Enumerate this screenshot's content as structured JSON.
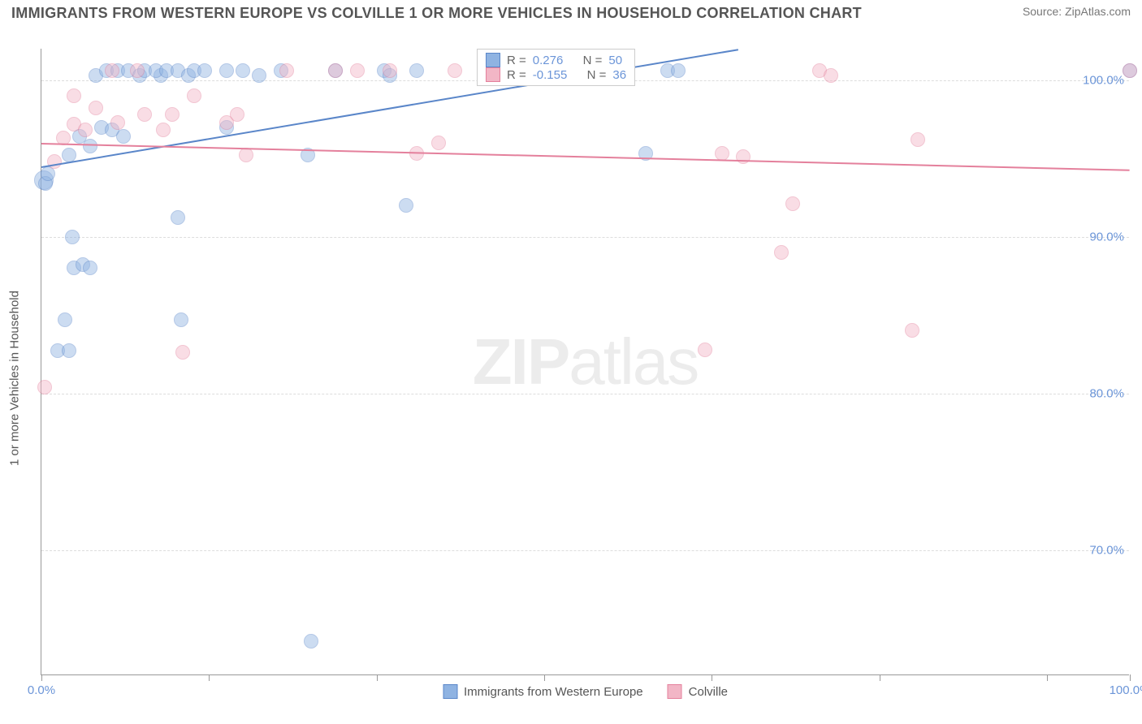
{
  "header": {
    "title": "IMMIGRANTS FROM WESTERN EUROPE VS COLVILLE 1 OR MORE VEHICLES IN HOUSEHOLD CORRELATION CHART",
    "source_label": "Source: ",
    "source_value": "ZipAtlas.com"
  },
  "chart": {
    "type": "scatter",
    "ylabel": "1 or more Vehicles in Household",
    "xlim": [
      0,
      100
    ],
    "ylim": [
      62,
      102
    ],
    "xtick_positions": [
      0,
      15.4,
      30.8,
      46.2,
      61.6,
      77.0,
      92.4,
      100
    ],
    "xtick_labels": {
      "0": "0.0%",
      "100": "100.0%"
    },
    "ytick_positions": [
      70,
      80,
      90,
      100
    ],
    "ytick_labels": {
      "70": "70.0%",
      "80": "80.0%",
      "90": "90.0%",
      "100": "100.0%"
    },
    "grid_color": "#dddddd",
    "background_color": "#ffffff",
    "axis_color": "#999999",
    "tick_label_color": "#6b95d8",
    "marker_radius": 9,
    "marker_opacity": 0.45,
    "series": [
      {
        "name": "Immigrants from Western Europe",
        "color_fill": "#8fb3e2",
        "color_stroke": "#5a86c9",
        "r_label": "R =",
        "r_value": "0.276",
        "n_label": "N =",
        "n_value": "50",
        "trend": {
          "x1": 0,
          "y1": 94.5,
          "x2": 64,
          "y2": 102
        },
        "points": [
          {
            "x": 0.2,
            "y": 93.6,
            "r": 12
          },
          {
            "x": 0.4,
            "y": 93.4
          },
          {
            "x": 0.6,
            "y": 94.0
          },
          {
            "x": 2.8,
            "y": 90.0
          },
          {
            "x": 3.0,
            "y": 88.0
          },
          {
            "x": 1.5,
            "y": 82.7
          },
          {
            "x": 2.5,
            "y": 82.7
          },
          {
            "x": 2.2,
            "y": 84.7
          },
          {
            "x": 3.8,
            "y": 88.2
          },
          {
            "x": 4.5,
            "y": 88.0
          },
          {
            "x": 2.5,
            "y": 95.2
          },
          {
            "x": 3.5,
            "y": 96.4
          },
          {
            "x": 4.5,
            "y": 95.8
          },
          {
            "x": 5.5,
            "y": 97.0
          },
          {
            "x": 6.5,
            "y": 96.8
          },
          {
            "x": 7.5,
            "y": 96.4
          },
          {
            "x": 5.0,
            "y": 100.3
          },
          {
            "x": 6.0,
            "y": 100.6
          },
          {
            "x": 7.0,
            "y": 100.6
          },
          {
            "x": 8.0,
            "y": 100.6
          },
          {
            "x": 9.0,
            "y": 100.3
          },
          {
            "x": 9.5,
            "y": 100.6
          },
          {
            "x": 11.0,
            "y": 100.3
          },
          {
            "x": 10.5,
            "y": 100.6
          },
          {
            "x": 11.5,
            "y": 100.6
          },
          {
            "x": 12.5,
            "y": 100.6
          },
          {
            "x": 13.5,
            "y": 100.3
          },
          {
            "x": 14.0,
            "y": 100.6
          },
          {
            "x": 15.0,
            "y": 100.6
          },
          {
            "x": 17.0,
            "y": 100.6
          },
          {
            "x": 17.0,
            "y": 97.0
          },
          {
            "x": 18.5,
            "y": 100.6
          },
          {
            "x": 20.0,
            "y": 100.3
          },
          {
            "x": 22.0,
            "y": 100.6
          },
          {
            "x": 24.5,
            "y": 95.2
          },
          {
            "x": 27.0,
            "y": 100.6
          },
          {
            "x": 31.5,
            "y": 100.6
          },
          {
            "x": 32.0,
            "y": 100.3
          },
          {
            "x": 33.5,
            "y": 92.0
          },
          {
            "x": 34.5,
            "y": 100.6
          },
          {
            "x": 45.5,
            "y": 100.6
          },
          {
            "x": 48.0,
            "y": 100.3
          },
          {
            "x": 51.5,
            "y": 100.6
          },
          {
            "x": 55.5,
            "y": 95.3
          },
          {
            "x": 57.5,
            "y": 100.6
          },
          {
            "x": 58.5,
            "y": 100.6
          },
          {
            "x": 12.5,
            "y": 91.2
          },
          {
            "x": 12.8,
            "y": 84.7
          },
          {
            "x": 24.8,
            "y": 64.2
          },
          {
            "x": 100.0,
            "y": 100.6
          }
        ]
      },
      {
        "name": "Colville",
        "color_fill": "#f2b6c6",
        "color_stroke": "#e4809c",
        "r_label": "R =",
        "r_value": "-0.155",
        "n_label": "N =",
        "n_value": "36",
        "trend": {
          "x1": 0,
          "y1": 96.0,
          "x2": 100,
          "y2": 94.3
        },
        "points": [
          {
            "x": 0.3,
            "y": 80.4
          },
          {
            "x": 1.2,
            "y": 94.8
          },
          {
            "x": 2.0,
            "y": 96.3
          },
          {
            "x": 3.0,
            "y": 97.2
          },
          {
            "x": 4.0,
            "y": 96.8
          },
          {
            "x": 3.0,
            "y": 99.0
          },
          {
            "x": 5.0,
            "y": 98.2
          },
          {
            "x": 6.5,
            "y": 100.6
          },
          {
            "x": 7.0,
            "y": 97.3
          },
          {
            "x": 8.8,
            "y": 100.6
          },
          {
            "x": 9.5,
            "y": 97.8
          },
          {
            "x": 11.2,
            "y": 96.8
          },
          {
            "x": 12.0,
            "y": 97.8
          },
          {
            "x": 13.0,
            "y": 82.6
          },
          {
            "x": 14.0,
            "y": 99.0
          },
          {
            "x": 17.0,
            "y": 97.3
          },
          {
            "x": 18.0,
            "y": 97.8
          },
          {
            "x": 18.8,
            "y": 95.2
          },
          {
            "x": 22.5,
            "y": 100.6
          },
          {
            "x": 27.0,
            "y": 100.6
          },
          {
            "x": 29.0,
            "y": 100.6
          },
          {
            "x": 32.0,
            "y": 100.6
          },
          {
            "x": 34.5,
            "y": 95.3
          },
          {
            "x": 36.5,
            "y": 96.0
          },
          {
            "x": 38.0,
            "y": 100.6
          },
          {
            "x": 44.0,
            "y": 100.6
          },
          {
            "x": 61.0,
            "y": 82.8
          },
          {
            "x": 62.5,
            "y": 95.3
          },
          {
            "x": 64.5,
            "y": 95.1
          },
          {
            "x": 68.0,
            "y": 89.0
          },
          {
            "x": 69.0,
            "y": 92.1
          },
          {
            "x": 80.0,
            "y": 84.0
          },
          {
            "x": 80.5,
            "y": 96.2
          },
          {
            "x": 71.5,
            "y": 100.6
          },
          {
            "x": 72.5,
            "y": 100.3
          },
          {
            "x": 100.0,
            "y": 100.6
          }
        ]
      }
    ],
    "watermark": {
      "part1": "ZIP",
      "part2": "atlas"
    },
    "bottom_legend": [
      {
        "swatch_fill": "#8fb3e2",
        "swatch_stroke": "#5a86c9",
        "label": "Immigrants from Western Europe"
      },
      {
        "swatch_fill": "#f2b6c6",
        "swatch_stroke": "#e4809c",
        "label": "Colville"
      }
    ]
  }
}
